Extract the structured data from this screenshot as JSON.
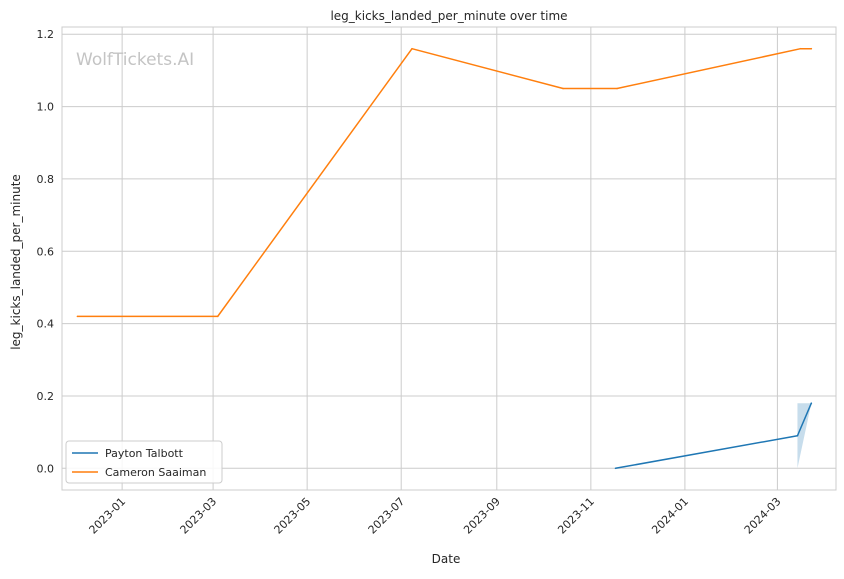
{
  "chart_data": {
    "type": "line",
    "title": "leg_kicks_landed_per_minute over time",
    "xlabel": "Date",
    "ylabel": "leg_kicks_landed_per_minute",
    "watermark": "WolfTickets.AI",
    "xlim": [
      "2022-11-23",
      "2024-04-08"
    ],
    "ylim": [
      -0.06,
      1.22
    ],
    "grid": true,
    "legend_position": "lower-left",
    "x_ticks": [
      {
        "date": "2023-01-01",
        "label": "2023-01"
      },
      {
        "date": "2023-03-01",
        "label": "2023-03"
      },
      {
        "date": "2023-05-01",
        "label": "2023-05"
      },
      {
        "date": "2023-07-01",
        "label": "2023-07"
      },
      {
        "date": "2023-09-01",
        "label": "2023-09"
      },
      {
        "date": "2023-11-01",
        "label": "2023-11"
      },
      {
        "date": "2024-01-01",
        "label": "2024-01"
      },
      {
        "date": "2024-03-01",
        "label": "2024-03"
      }
    ],
    "y_ticks": [
      0.0,
      0.2,
      0.4,
      0.6,
      0.8,
      1.0,
      1.2
    ],
    "series": [
      {
        "name": "Payton Talbott",
        "color": "#1f77b4",
        "points": [
          {
            "x": "2023-11-17",
            "y": 0.0
          },
          {
            "x": "2024-03-14",
            "y": 0.09
          },
          {
            "x": "2024-03-23",
            "y": 0.18
          }
        ],
        "band": [
          {
            "x": "2024-03-14",
            "low": 0.0,
            "high": 0.18
          },
          {
            "x": "2024-03-23",
            "low": 0.18,
            "high": 0.18
          }
        ],
        "band_color": "#1f77b4"
      },
      {
        "name": "Cameron Saaiman",
        "color": "#ff7f0e",
        "points": [
          {
            "x": "2022-12-03",
            "y": 0.42
          },
          {
            "x": "2023-03-04",
            "y": 0.42
          },
          {
            "x": "2023-07-08",
            "y": 1.16
          },
          {
            "x": "2023-10-14",
            "y": 1.05
          },
          {
            "x": "2023-11-18",
            "y": 1.05
          },
          {
            "x": "2024-03-16",
            "y": 1.16
          },
          {
            "x": "2024-03-23",
            "y": 1.16
          }
        ]
      }
    ]
  }
}
